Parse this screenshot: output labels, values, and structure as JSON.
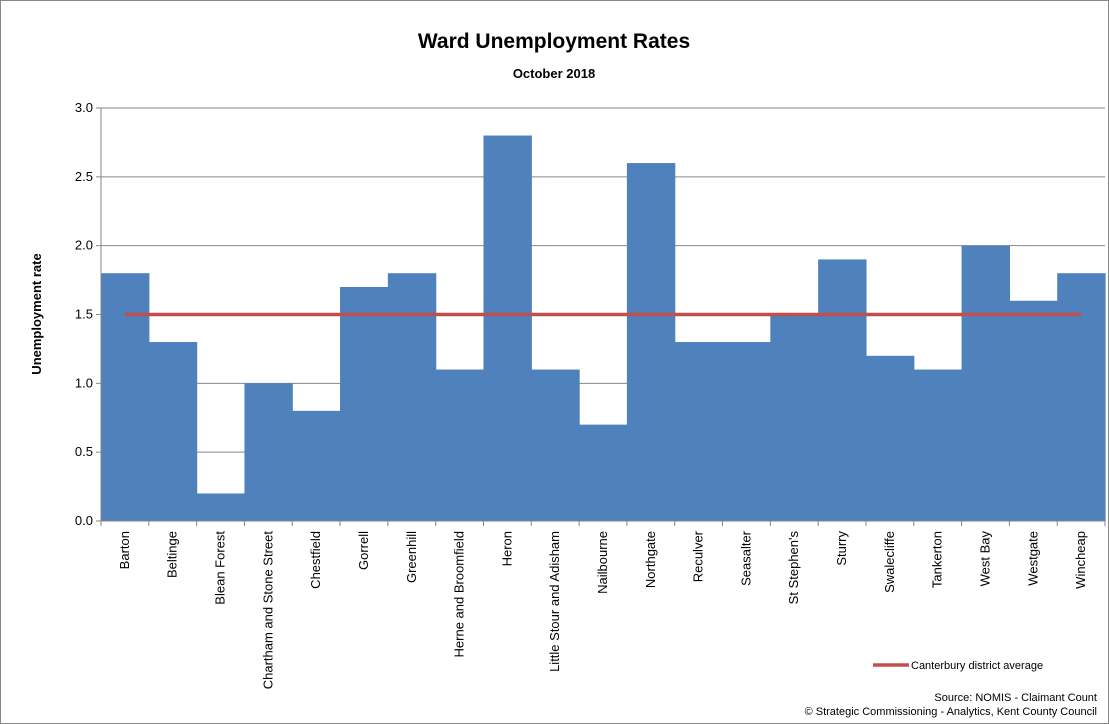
{
  "chart_data": {
    "type": "bar",
    "title": "Ward Unemployment Rates",
    "subtitle": "October 2018",
    "ylabel": "Unemployment rate",
    "xlabel": "",
    "ylim": [
      0,
      3.0
    ],
    "yticks": [
      "0.0",
      "0.5",
      "1.0",
      "1.5",
      "2.0",
      "2.5",
      "3.0"
    ],
    "ytick_values": [
      0,
      0.5,
      1.0,
      1.5,
      2.0,
      2.5,
      3.0
    ],
    "grid": true,
    "bar_color": "#4F81BD",
    "line_color": "#C0504D",
    "categories": [
      "Barton",
      "Beltinge",
      "Blean Forest",
      "Chartham and Stone Street",
      "Chestfield",
      "Gorrell",
      "Greenhill",
      "Herne and Broomfield",
      "Heron",
      "Little Stour and Adisham",
      "Nailbourne",
      "Northgate",
      "Reculver",
      "Seasalter",
      "St Stephen's",
      "Sturry",
      "Swalecliffe",
      "Tankerton",
      "West Bay",
      "Westgate",
      "Wincheap"
    ],
    "values": [
      1.8,
      1.3,
      0.2,
      1.0,
      0.8,
      1.7,
      1.8,
      1.1,
      2.8,
      1.1,
      0.7,
      2.6,
      1.3,
      1.3,
      1.5,
      1.9,
      1.2,
      1.1,
      2.0,
      1.6,
      1.8
    ],
    "reference_line": {
      "name": "Canterbury district average",
      "value": 1.5
    },
    "legend_position": "bottom-right",
    "source_line_1": "Source: NOMIS - Claimant Count",
    "source_line_2": "© Strategic Commissioning - Analytics, Kent County Council"
  }
}
